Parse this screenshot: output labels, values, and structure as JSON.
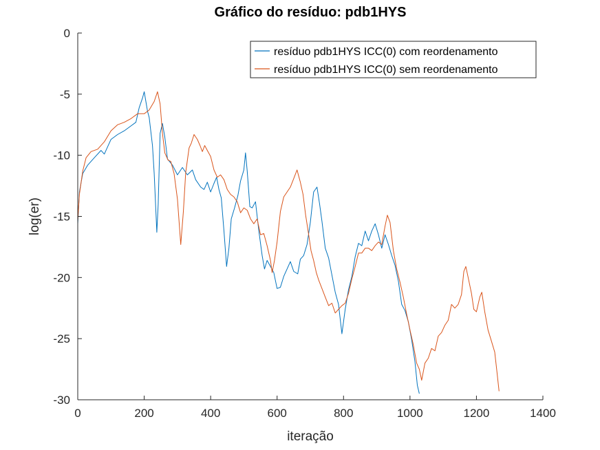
{
  "chart_data": {
    "type": "line",
    "title": "Gráfico do resíduo:  pdb1HYS",
    "xlabel": "iteração",
    "ylabel": "log(er)",
    "xlim": [
      0,
      1400
    ],
    "ylim": [
      -30,
      0
    ],
    "xticks": [
      0,
      200,
      400,
      600,
      800,
      1000,
      1200,
      1400
    ],
    "yticks": [
      0,
      -5,
      -10,
      -15,
      -20,
      -25,
      -30
    ],
    "grid": false,
    "legend_position": "top-right",
    "series": [
      {
        "name": "resíduo  pdb1HYS ICC(0) com reordenamento",
        "color": "#0072BD",
        "points": [
          [
            0,
            -15.6
          ],
          [
            5,
            -13
          ],
          [
            15,
            -11.5
          ],
          [
            30,
            -10.8
          ],
          [
            50,
            -10.2
          ],
          [
            70,
            -9.6
          ],
          [
            80,
            -9.9
          ],
          [
            100,
            -8.7
          ],
          [
            120,
            -8.3
          ],
          [
            140,
            -8
          ],
          [
            160,
            -7.6
          ],
          [
            175,
            -7.3
          ],
          [
            185,
            -6.1
          ],
          [
            195,
            -5.3
          ],
          [
            200,
            -4.8
          ],
          [
            205,
            -5.6
          ],
          [
            210,
            -6.4
          ],
          [
            215,
            -6.9
          ],
          [
            225,
            -9.2
          ],
          [
            230,
            -11.5
          ],
          [
            238,
            -16.3
          ],
          [
            242,
            -14
          ],
          [
            248,
            -8.2
          ],
          [
            255,
            -7.4
          ],
          [
            262,
            -8.5
          ],
          [
            270,
            -10.3
          ],
          [
            285,
            -10.8
          ],
          [
            300,
            -11.6
          ],
          [
            315,
            -11
          ],
          [
            330,
            -11.6
          ],
          [
            345,
            -11.2
          ],
          [
            355,
            -12
          ],
          [
            370,
            -12.6
          ],
          [
            380,
            -12.8
          ],
          [
            390,
            -12.2
          ],
          [
            400,
            -13
          ],
          [
            410,
            -12.3
          ],
          [
            418,
            -11.8
          ],
          [
            425,
            -12.8
          ],
          [
            432,
            -13.5
          ],
          [
            440,
            -16.2
          ],
          [
            448,
            -19.1
          ],
          [
            455,
            -17.6
          ],
          [
            462,
            -15.2
          ],
          [
            472,
            -14.3
          ],
          [
            482,
            -13.3
          ],
          [
            490,
            -12.1
          ],
          [
            500,
            -11.2
          ],
          [
            505,
            -9.8
          ],
          [
            510,
            -11.3
          ],
          [
            518,
            -14.2
          ],
          [
            525,
            -14.3
          ],
          [
            535,
            -13.8
          ],
          [
            545,
            -16.2
          ],
          [
            555,
            -18.2
          ],
          [
            562,
            -19.3
          ],
          [
            570,
            -18.6
          ],
          [
            580,
            -19.1
          ],
          [
            590,
            -19.6
          ],
          [
            600,
            -20.9
          ],
          [
            610,
            -20.8
          ],
          [
            620,
            -19.9
          ],
          [
            630,
            -19.3
          ],
          [
            640,
            -18.7
          ],
          [
            650,
            -19.5
          ],
          [
            662,
            -19.7
          ],
          [
            670,
            -18.5
          ],
          [
            680,
            -18.2
          ],
          [
            690,
            -17.3
          ],
          [
            700,
            -15.5
          ],
          [
            710,
            -13
          ],
          [
            720,
            -12.6
          ],
          [
            728,
            -14
          ],
          [
            735,
            -15.4
          ],
          [
            745,
            -17.6
          ],
          [
            755,
            -18.4
          ],
          [
            765,
            -19.8
          ],
          [
            775,
            -21.2
          ],
          [
            785,
            -22.2
          ],
          [
            795,
            -24.6
          ],
          [
            805,
            -22.6
          ],
          [
            815,
            -21
          ],
          [
            825,
            -19.9
          ],
          [
            835,
            -18.3
          ],
          [
            845,
            -17.2
          ],
          [
            855,
            -17.4
          ],
          [
            865,
            -16.2
          ],
          [
            875,
            -17
          ],
          [
            885,
            -16.2
          ],
          [
            895,
            -15.6
          ],
          [
            905,
            -16.5
          ],
          [
            915,
            -17.6
          ],
          [
            925,
            -16.5
          ],
          [
            935,
            -17.3
          ],
          [
            945,
            -18.2
          ],
          [
            955,
            -19
          ],
          [
            965,
            -20.3
          ],
          [
            975,
            -22.2
          ],
          [
            985,
            -22.7
          ],
          [
            995,
            -23.6
          ],
          [
            1005,
            -25.1
          ],
          [
            1015,
            -26.9
          ],
          [
            1022,
            -28.8
          ],
          [
            1028,
            -29.5
          ]
        ]
      },
      {
        "name": "resíduo  pdb1HYS ICC(0) sem reordenamento",
        "color": "#D95319",
        "points": [
          [
            0,
            -15.4
          ],
          [
            5,
            -13.2
          ],
          [
            15,
            -11.3
          ],
          [
            25,
            -10.2
          ],
          [
            40,
            -9.7
          ],
          [
            60,
            -9.5
          ],
          [
            80,
            -8.9
          ],
          [
            100,
            -8
          ],
          [
            120,
            -7.5
          ],
          [
            140,
            -7.3
          ],
          [
            160,
            -7
          ],
          [
            180,
            -6.6
          ],
          [
            200,
            -6.6
          ],
          [
            215,
            -6.3
          ],
          [
            230,
            -5.6
          ],
          [
            240,
            -4.8
          ],
          [
            248,
            -5.8
          ],
          [
            255,
            -8.2
          ],
          [
            262,
            -9.8
          ],
          [
            272,
            -10.4
          ],
          [
            280,
            -10.5
          ],
          [
            290,
            -11.5
          ],
          [
            300,
            -13.6
          ],
          [
            310,
            -17.3
          ],
          [
            318,
            -14.6
          ],
          [
            325,
            -11.4
          ],
          [
            335,
            -9.4
          ],
          [
            342,
            -9
          ],
          [
            350,
            -8.3
          ],
          [
            360,
            -8.7
          ],
          [
            368,
            -9.2
          ],
          [
            375,
            -9.7
          ],
          [
            382,
            -9.2
          ],
          [
            390,
            -9.6
          ],
          [
            400,
            -10.1
          ],
          [
            410,
            -11.2
          ],
          [
            420,
            -11.8
          ],
          [
            430,
            -11.6
          ],
          [
            440,
            -12
          ],
          [
            450,
            -12.8
          ],
          [
            460,
            -13.2
          ],
          [
            470,
            -13.4
          ],
          [
            480,
            -13.8
          ],
          [
            490,
            -14.7
          ],
          [
            500,
            -14.3
          ],
          [
            510,
            -14.5
          ],
          [
            520,
            -15.2
          ],
          [
            530,
            -15.6
          ],
          [
            540,
            -15.2
          ],
          [
            550,
            -16.5
          ],
          [
            560,
            -16.4
          ],
          [
            570,
            -17.4
          ],
          [
            580,
            -18.6
          ],
          [
            585,
            -19.6
          ],
          [
            592,
            -18.6
          ],
          [
            600,
            -17.1
          ],
          [
            610,
            -14.6
          ],
          [
            620,
            -13.4
          ],
          [
            630,
            -13
          ],
          [
            640,
            -12.6
          ],
          [
            650,
            -11.9
          ],
          [
            660,
            -11.2
          ],
          [
            670,
            -12.2
          ],
          [
            678,
            -13.2
          ],
          [
            686,
            -14.9
          ],
          [
            695,
            -16.5
          ],
          [
            702,
            -17.8
          ],
          [
            710,
            -18.6
          ],
          [
            718,
            -19.6
          ],
          [
            725,
            -20.2
          ],
          [
            735,
            -20.9
          ],
          [
            745,
            -21.6
          ],
          [
            755,
            -22.3
          ],
          [
            765,
            -22.1
          ],
          [
            775,
            -22.9
          ],
          [
            785,
            -22.6
          ],
          [
            795,
            -22.3
          ],
          [
            805,
            -22.1
          ],
          [
            815,
            -21.3
          ],
          [
            825,
            -20.1
          ],
          [
            835,
            -19.1
          ],
          [
            845,
            -18
          ],
          [
            855,
            -18
          ],
          [
            865,
            -17.6
          ],
          [
            875,
            -17.6
          ],
          [
            885,
            -17.8
          ],
          [
            895,
            -17.4
          ],
          [
            905,
            -17.1
          ],
          [
            915,
            -17.3
          ],
          [
            925,
            -15.8
          ],
          [
            932,
            -14.9
          ],
          [
            940,
            -15.5
          ],
          [
            950,
            -17.8
          ],
          [
            960,
            -19.3
          ],
          [
            970,
            -20.4
          ],
          [
            980,
            -21.6
          ],
          [
            990,
            -23
          ],
          [
            1000,
            -24.3
          ],
          [
            1010,
            -25.5
          ],
          [
            1020,
            -27
          ],
          [
            1028,
            -27.5
          ],
          [
            1035,
            -28.4
          ],
          [
            1045,
            -27
          ],
          [
            1055,
            -26.6
          ],
          [
            1065,
            -25.8
          ],
          [
            1075,
            -26
          ],
          [
            1085,
            -24.8
          ],
          [
            1095,
            -24.5
          ],
          [
            1105,
            -23.9
          ],
          [
            1115,
            -23.5
          ],
          [
            1125,
            -22.2
          ],
          [
            1135,
            -22.5
          ],
          [
            1145,
            -22.2
          ],
          [
            1155,
            -21.4
          ],
          [
            1162,
            -19.5
          ],
          [
            1168,
            -19.1
          ],
          [
            1175,
            -20
          ],
          [
            1185,
            -21.3
          ],
          [
            1192,
            -22.6
          ],
          [
            1200,
            -22.8
          ],
          [
            1210,
            -21.6
          ],
          [
            1216,
            -21.2
          ],
          [
            1225,
            -22.8
          ],
          [
            1235,
            -24.3
          ],
          [
            1245,
            -25.2
          ],
          [
            1255,
            -26.1
          ],
          [
            1262,
            -27.8
          ],
          [
            1268,
            -29.3
          ]
        ]
      }
    ]
  }
}
